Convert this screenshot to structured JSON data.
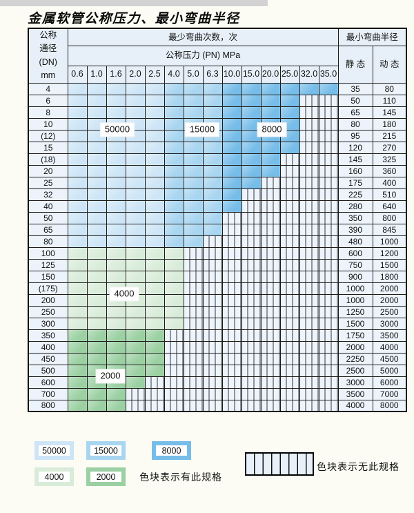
{
  "page": {
    "title": "金属软管公称压力、最小弯曲半径"
  },
  "colors": {
    "blue_50000": "#cde5f6",
    "blue_15000": "#a8d5f0",
    "blue_8000": "#76bde9",
    "green_4000": "#d9ecd9",
    "green_2000": "#9bd0a2",
    "hatch_bg": "#eef4fb",
    "header_bg": "#e7f0f8",
    "label_col_bg": "#ecf3fa",
    "border": "#1c1c1c"
  },
  "table": {
    "dn_header_lines": [
      "公称",
      "通径",
      "(DN)",
      "mm"
    ],
    "bend_cycles_header": "最少弯曲次数，次",
    "pressure_header": "公称压力 (PN) MPa",
    "pressure_columns": [
      "0.6",
      "1.0",
      "1.6",
      "2.0",
      "2.5",
      "4.0",
      "5.0",
      "6.3",
      "10.0",
      "15.0",
      "20.0",
      "25.0",
      "32.0",
      "35.0"
    ],
    "min_radius_header": "最小弯曲半径",
    "static_header": "静 态",
    "dynamic_header": "动 态",
    "blue_zone_by_column": {
      "cols_1_5": "50000",
      "cols_6_8": "15000",
      "cols_9_14": "8000"
    },
    "overlay_labels": [
      "50000",
      "15000",
      "8000",
      "4000",
      "2000"
    ],
    "rows": [
      {
        "dn": "4",
        "colored_through_col": 14,
        "zone": "blue",
        "static": "35",
        "dynamic": "80"
      },
      {
        "dn": "6",
        "colored_through_col": 12,
        "zone": "blue",
        "static": "50",
        "dynamic": "110"
      },
      {
        "dn": "8",
        "colored_through_col": 12,
        "zone": "blue",
        "static": "65",
        "dynamic": "145"
      },
      {
        "dn": "10",
        "colored_through_col": 12,
        "zone": "blue",
        "static": "80",
        "dynamic": "180"
      },
      {
        "dn": "(12)",
        "colored_through_col": 12,
        "zone": "blue",
        "static": "95",
        "dynamic": "215"
      },
      {
        "dn": "15",
        "colored_through_col": 12,
        "zone": "blue",
        "static": "120",
        "dynamic": "270"
      },
      {
        "dn": "(18)",
        "colored_through_col": 11,
        "zone": "blue",
        "static": "145",
        "dynamic": "325"
      },
      {
        "dn": "20",
        "colored_through_col": 11,
        "zone": "blue",
        "static": "160",
        "dynamic": "360"
      },
      {
        "dn": "25",
        "colored_through_col": 10,
        "zone": "blue",
        "static": "175",
        "dynamic": "400"
      },
      {
        "dn": "32",
        "colored_through_col": 9,
        "zone": "blue",
        "static": "225",
        "dynamic": "510"
      },
      {
        "dn": "40",
        "colored_through_col": 9,
        "zone": "blue",
        "static": "280",
        "dynamic": "640"
      },
      {
        "dn": "50",
        "colored_through_col": 8,
        "zone": "blue",
        "static": "350",
        "dynamic": "800"
      },
      {
        "dn": "65",
        "colored_through_col": 8,
        "zone": "blue",
        "static": "390",
        "dynamic": "845"
      },
      {
        "dn": "80",
        "colored_through_col": 7,
        "zone": "blue",
        "static": "480",
        "dynamic": "1000"
      },
      {
        "dn": "100",
        "colored_through_col": 6,
        "zone": "green_4000",
        "static": "600",
        "dynamic": "1200"
      },
      {
        "dn": "125",
        "colored_through_col": 6,
        "zone": "green_4000",
        "static": "750",
        "dynamic": "1500"
      },
      {
        "dn": "150",
        "colored_through_col": 6,
        "zone": "green_4000",
        "static": "900",
        "dynamic": "1800"
      },
      {
        "dn": "(175)",
        "colored_through_col": 6,
        "zone": "green_4000",
        "static": "1000",
        "dynamic": "2000"
      },
      {
        "dn": "200",
        "colored_through_col": 6,
        "zone": "green_4000",
        "static": "1000",
        "dynamic": "2000"
      },
      {
        "dn": "250",
        "colored_through_col": 6,
        "zone": "green_4000",
        "static": "1250",
        "dynamic": "2500"
      },
      {
        "dn": "300",
        "colored_through_col": 6,
        "zone": "green_4000",
        "static": "1500",
        "dynamic": "3000"
      },
      {
        "dn": "350",
        "colored_through_col": 5,
        "zone": "green_2000",
        "static": "1750",
        "dynamic": "3500"
      },
      {
        "dn": "400",
        "colored_through_col": 5,
        "zone": "green_2000",
        "static": "2000",
        "dynamic": "4000"
      },
      {
        "dn": "450",
        "colored_through_col": 5,
        "zone": "green_2000",
        "static": "2250",
        "dynamic": "4500"
      },
      {
        "dn": "500",
        "colored_through_col": 5,
        "zone": "green_2000",
        "static": "2500",
        "dynamic": "5000"
      },
      {
        "dn": "600",
        "colored_through_col": 4,
        "zone": "green_2000",
        "static": "3000",
        "dynamic": "6000"
      },
      {
        "dn": "700",
        "colored_through_col": 3,
        "zone": "green_2000",
        "static": "3500",
        "dynamic": "7000"
      },
      {
        "dn": "800",
        "colored_through_col": 3,
        "zone": "green_2000",
        "static": "4000",
        "dynamic": "8000"
      }
    ]
  },
  "legend": {
    "chips": [
      {
        "label": "50000",
        "color_key": "blue_50000"
      },
      {
        "label": "15000",
        "color_key": "blue_15000"
      },
      {
        "label": "8000",
        "color_key": "blue_8000"
      },
      {
        "label": "4000",
        "color_key": "green_4000"
      },
      {
        "label": "2000",
        "color_key": "green_2000"
      }
    ],
    "has_spec_text": "色块表示有此规格",
    "no_spec_text": "色块表示无此规格"
  }
}
